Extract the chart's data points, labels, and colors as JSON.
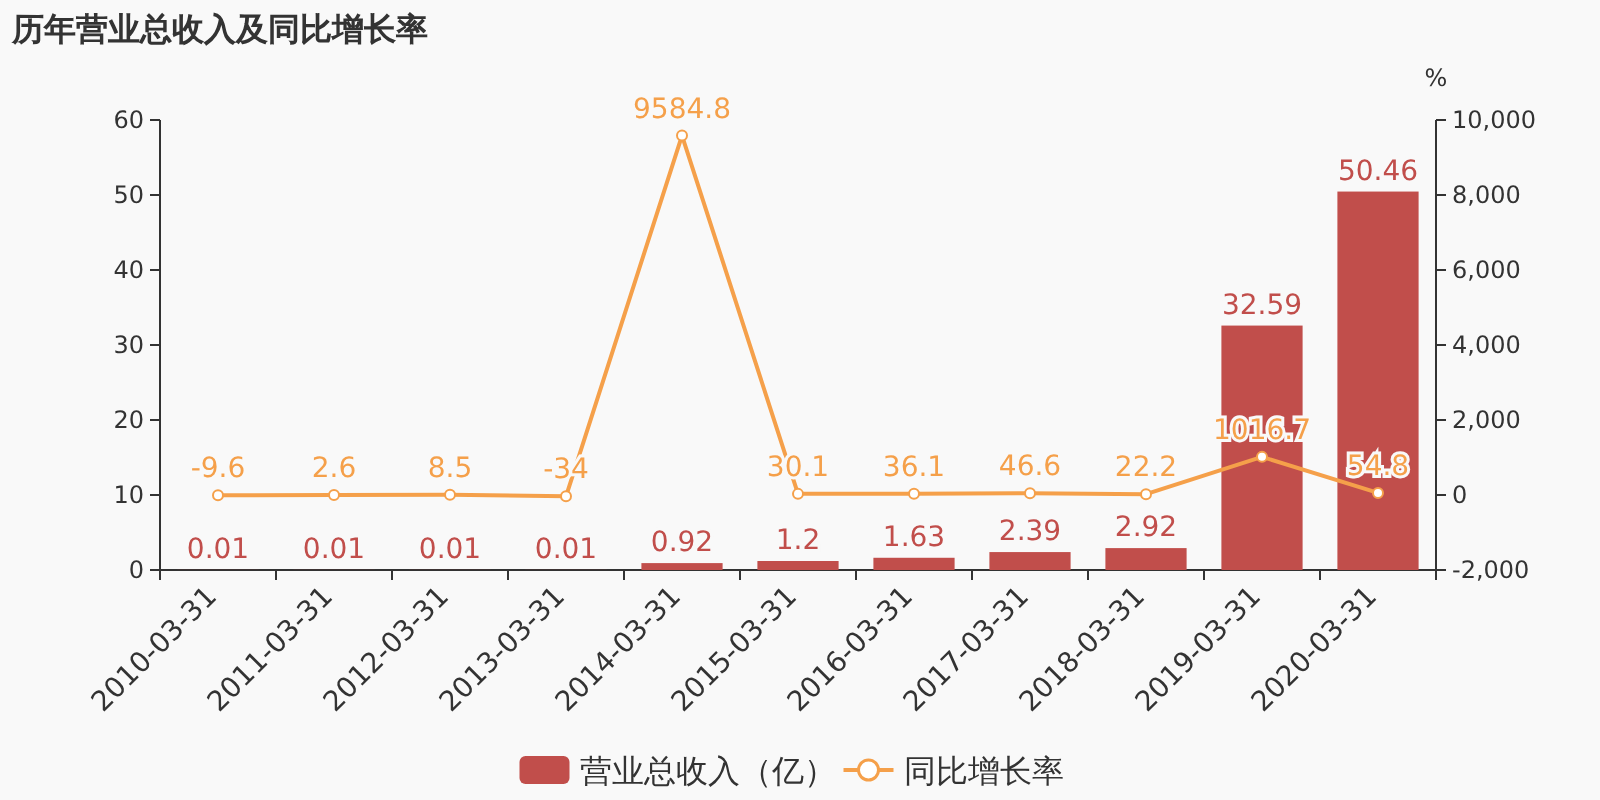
{
  "chart_data": {
    "type": "bar",
    "title": "历年营业总收入及同比增长率",
    "categories": [
      "2010-03-31",
      "2011-03-31",
      "2012-03-31",
      "2013-03-31",
      "2014-03-31",
      "2015-03-31",
      "2016-03-31",
      "2017-03-31",
      "2018-03-31",
      "2019-03-31",
      "2020-03-31"
    ],
    "series": [
      {
        "name": "营业总收入（亿）",
        "color": "#c14e4b",
        "values": [
          0.01,
          0.01,
          0.01,
          0.01,
          0.92,
          1.2,
          1.63,
          2.39,
          2.92,
          32.59,
          50.46
        ]
      },
      {
        "name": "同比增长率",
        "type": "line",
        "axis": "y2",
        "color": "#f5a04a",
        "values": [
          -9.6,
          2.6,
          8.5,
          -34,
          9584.8,
          30.1,
          36.1,
          46.6,
          22.2,
          1016.7,
          54.8
        ]
      }
    ],
    "ylim": [
      0,
      60
    ],
    "yticks": [
      0,
      10,
      20,
      30,
      40,
      50,
      60
    ],
    "y2lim": [
      -2000,
      10000
    ],
    "y2ticks": [
      {
        "value": -2000,
        "label": "-2,000"
      },
      0,
      {
        "value": 2000,
        "label": "2,000"
      },
      {
        "value": 4000,
        "label": "4,000"
      },
      {
        "value": 6000,
        "label": "6,000"
      },
      {
        "value": 8000,
        "label": "8,000"
      },
      {
        "value": 10000,
        "label": "10,000"
      }
    ],
    "y2label": "%",
    "data_labels": true,
    "legend": "bottom",
    "marker": "circle"
  }
}
